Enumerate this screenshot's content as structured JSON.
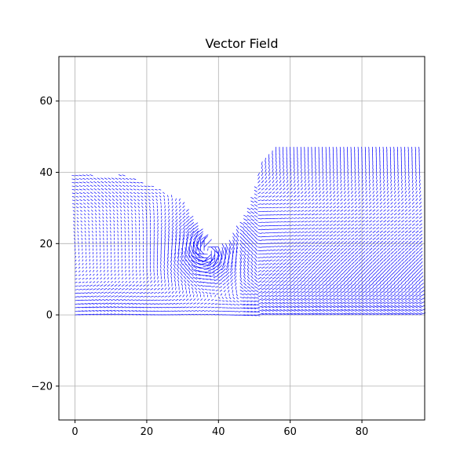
{
  "chart_data": {
    "type": "quiver",
    "title": "Vector Field",
    "xlabel": "",
    "ylabel": "",
    "xlim": [
      -4.5,
      97.5
    ],
    "ylim": [
      -29.5,
      72.5
    ],
    "xticks": [
      0,
      20,
      40,
      60,
      80
    ],
    "yticks": [
      -20,
      0,
      20,
      40,
      60
    ],
    "xtick_labels": [
      "0",
      "20",
      "40",
      "60",
      "80"
    ],
    "ytick_labels": [
      "−20",
      "0",
      "20",
      "40",
      "60"
    ],
    "grid": true,
    "arrow_color": "#0000ff",
    "grid_spacing": 1,
    "domain_x_range": [
      0,
      96
    ],
    "domain_y_range": [
      0,
      46
    ],
    "vortex_center": [
      37,
      18
    ]
  }
}
